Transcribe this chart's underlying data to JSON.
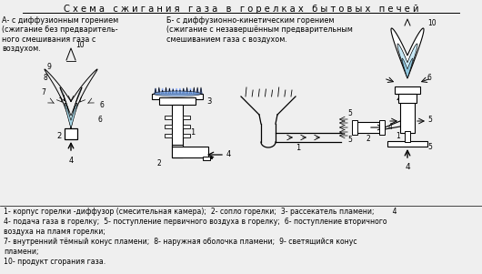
{
  "title": "С х е м а   с ж и г а н и я   г а з а   в   г о р е л к а х   б ы т о в ы х   п е ч е й",
  "bg_color": "#efefef",
  "label_A": "А- с диффузионным горением\n(сжигание без предваритель-\nного смешивания газа с\nвоздухом.",
  "label_B": "Б- с диффузионно-кинетическим горением\n(сжигание с незавершённым предварительным\nсмешиванием газа с воздухом.",
  "legend_line1": "1- корпус горелки -диффузор (смесительная камера);  2- сопло горелки;  3- рассекатель пламени;        4",
  "legend_line2": "4- подача газа в горелку;  5- поступление первичного воздуха в горелку;  6- поступление вторичного",
  "legend_line3": "воздуха на пламя горелки;",
  "legend_line4": "7- внутренний тёмный конус пламени;  8- наружная оболочка пламени;  9- светящийся конус",
  "legend_line5": "пламени;",
  "legend_line6": "10- продукт сгорания газа."
}
